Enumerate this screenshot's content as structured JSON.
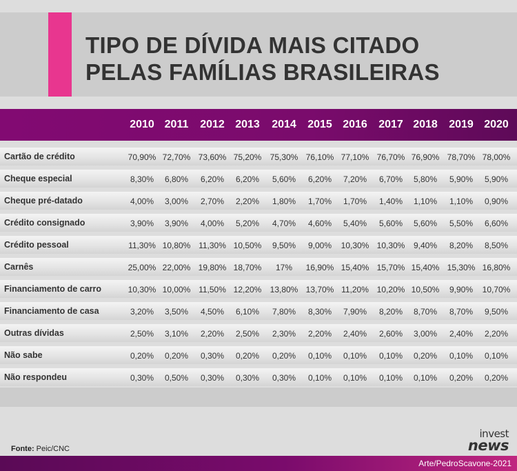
{
  "title": {
    "line1": "TIPO DE DÍVIDA MAIS CITADO",
    "line2": "PELAS FAMÍLIAS BRASILEIRAS"
  },
  "source": {
    "prefix": "Fonte:",
    "text": "Peic/CNC"
  },
  "logo": {
    "line1": "invest",
    "line2": "news"
  },
  "credit": "Arte/PedroScavone-2021",
  "colors": {
    "accent": "#e8368f",
    "header": "#7a0b6c",
    "title_text": "#333333"
  },
  "chart_data": {
    "type": "table",
    "title": "TIPO DE DÍVIDA MAIS CITADO PELAS FAMÍLIAS BRASILEIRAS",
    "columns": [
      "2010",
      "2011",
      "2012",
      "2013",
      "2014",
      "2015",
      "2016",
      "2017",
      "2018",
      "2019",
      "2020"
    ],
    "rows": [
      {
        "label": "Cartão de crédito",
        "values": [
          "70,90%",
          "72,70%",
          "73,60%",
          "75,20%",
          "75,30%",
          "76,10%",
          "77,10%",
          "76,70%",
          "76,90%",
          "78,70%",
          "78,00%"
        ]
      },
      {
        "label": "Cheque especial",
        "values": [
          "8,30%",
          "6,80%",
          "6,20%",
          "6,20%",
          "5,60%",
          "6,20%",
          "7,20%",
          "6,70%",
          "5,80%",
          "5,90%",
          "5,90%"
        ]
      },
      {
        "label": "Cheque pré-datado",
        "values": [
          "4,00%",
          "3,00%",
          "2,70%",
          "2,20%",
          "1,80%",
          "1,70%",
          "1,70%",
          "1,40%",
          "1,10%",
          "1,10%",
          "0,90%"
        ]
      },
      {
        "label": "Crédito consignado",
        "values": [
          "3,90%",
          "3,90%",
          "4,00%",
          "5,20%",
          "4,70%",
          "4,60%",
          "5,40%",
          "5,60%",
          "5,60%",
          "5,50%",
          "6,60%"
        ]
      },
      {
        "label": "Crédito pessoal",
        "values": [
          "11,30%",
          "10,80%",
          "11,30%",
          "10,50%",
          "9,50%",
          "9,00%",
          "10,30%",
          "10,30%",
          "9,40%",
          "8,20%",
          "8,50%"
        ]
      },
      {
        "label": "Carnês",
        "values": [
          "25,00%",
          "22,00%",
          "19,80%",
          "18,70%",
          "17%",
          "16,90%",
          "15,40%",
          "15,70%",
          "15,40%",
          "15,30%",
          "16,80%"
        ]
      },
      {
        "label": "Financiamento de carro",
        "values": [
          "10,30%",
          "10,00%",
          "11,50%",
          "12,20%",
          "13,80%",
          "13,70%",
          "11,20%",
          "10,20%",
          "10,50%",
          "9,90%",
          "10,70%"
        ]
      },
      {
        "label": "Financiamento de casa",
        "values": [
          "3,20%",
          "3,50%",
          "4,50%",
          "6,10%",
          "7,80%",
          "8,30%",
          "7,90%",
          "8,20%",
          "8,70%",
          "8,70%",
          "9,50%"
        ]
      },
      {
        "label": "Outras dívidas",
        "values": [
          "2,50%",
          "3,10%",
          "2,20%",
          "2,50%",
          "2,30%",
          "2,20%",
          "2,40%",
          "2,60%",
          "3,00%",
          "2,40%",
          "2,20%"
        ]
      },
      {
        "label": "Não sabe",
        "values": [
          "0,20%",
          "0,20%",
          "0,30%",
          "0,20%",
          "0,20%",
          "0,10%",
          "0,10%",
          "0,10%",
          "0,20%",
          "0,10%",
          "0,10%"
        ]
      },
      {
        "label": "Não respondeu",
        "values": [
          "0,30%",
          "0,50%",
          "0,30%",
          "0,30%",
          "0,30%",
          "0,10%",
          "0,10%",
          "0,10%",
          "0,10%",
          "0,20%",
          "0,20%"
        ]
      }
    ]
  }
}
